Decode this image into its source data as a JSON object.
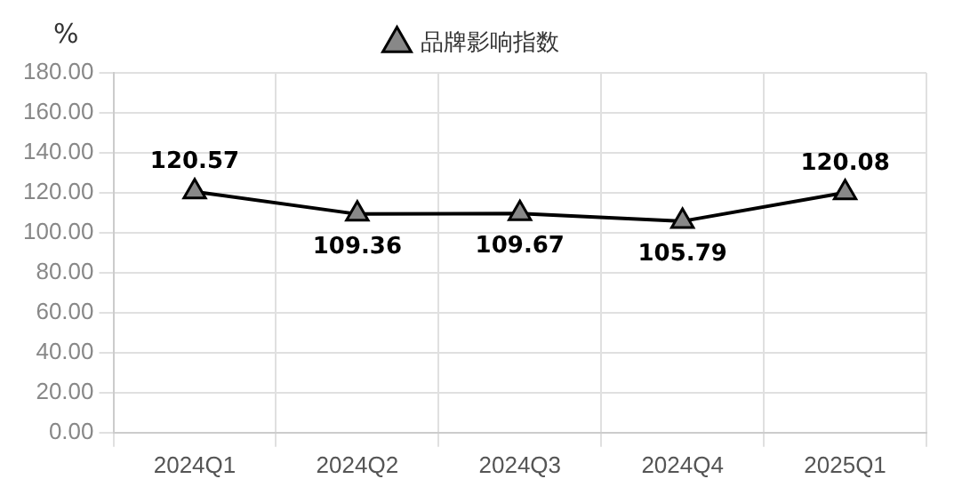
{
  "chart_data": {
    "type": "line",
    "ylabel": "%",
    "categories": [
      "2024Q1",
      "2024Q2",
      "2024Q3",
      "2024Q4",
      "2025Q1"
    ],
    "series": [
      {
        "name": "品牌影响指数",
        "color": "#000000",
        "values": [
          120.57,
          109.36,
          109.67,
          105.79,
          120.08
        ]
      }
    ],
    "ylim": [
      0,
      180
    ],
    "yticks": [
      {
        "value": 0,
        "label": "0.00"
      },
      {
        "value": 20,
        "label": "20.00"
      },
      {
        "value": 40,
        "label": "40.00"
      },
      {
        "value": 60,
        "label": "60.00"
      },
      {
        "value": 80,
        "label": "80.00"
      },
      {
        "value": 100,
        "label": "100.00"
      },
      {
        "value": 120,
        "label": "120.00"
      },
      {
        "value": 140,
        "label": "140.00"
      },
      {
        "value": 160,
        "label": "160.00"
      },
      {
        "value": 180,
        "label": "180.00"
      }
    ],
    "grid": true,
    "legend": "top",
    "marker": "triangle",
    "line_style": "solid",
    "data_labels": true
  }
}
